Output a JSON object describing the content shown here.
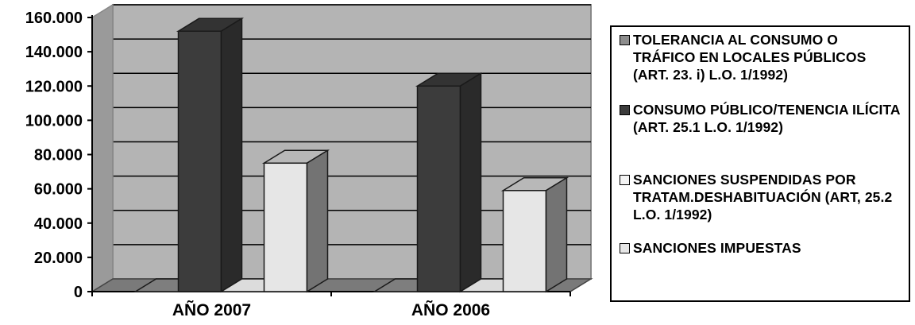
{
  "chart_data": {
    "type": "bar",
    "categories": [
      "AÑO 2007",
      "AÑO 2006"
    ],
    "series": [
      {
        "name": "TOLERANCIA AL CONSUMO O TRÁFICO EN LOCALES PÚBLICOS (ART. 23. i)  L.O. 1/1992)",
        "values": [
          0,
          0
        ],
        "color": "#8c8c8c"
      },
      {
        "name": "CONSUMO PÚBLICO/TENENCIA ILÍCITA (ART. 25.1  L.O. 1/1992)",
        "values": [
          152000,
          120000
        ],
        "color": "#3c3c3c"
      },
      {
        "name": "SANCIONES SUSPENDIDAS POR TRATAM.DESHABITUACIÓN (ART, 25.2  L.O. 1/1992)",
        "values": [
          0,
          0
        ],
        "color": "#f4f4f4"
      },
      {
        "name": "SANCIONES IMPUESTAS",
        "values": [
          75000,
          59000
        ],
        "color": "#e6e6e6"
      }
    ],
    "y_ticks": [
      "0",
      "20.000",
      "40.000",
      "60.000",
      "80.000",
      "100.000",
      "120.000",
      "140.000",
      "160.000"
    ],
    "ylim": [
      0,
      160000
    ],
    "grid": true,
    "legend_position": "right",
    "wall_color": "#b4b4b4",
    "floor_color": "#7a7a7a"
  }
}
